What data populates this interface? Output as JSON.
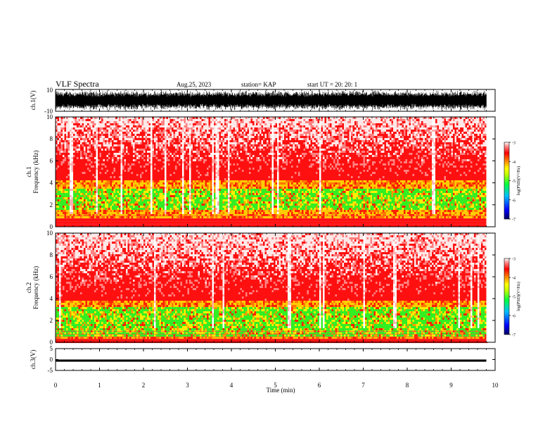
{
  "header": {
    "title": "VLF Spectra",
    "date": "Aug.25, 2023",
    "station": "station= KAP",
    "start": "start  UT =   20: 20: 1"
  },
  "chart_data": [
    {
      "type": "line",
      "panel": "ch1-waveform",
      "ylabel": "ch.1(V)",
      "ylim": [
        -10,
        10
      ],
      "yticks": [
        "10",
        "-10"
      ],
      "xlim": [
        0,
        10
      ],
      "series": [
        {
          "values_range": [
            -10,
            10
          ],
          "coverage_end_min": 9.8
        }
      ]
    },
    {
      "type": "heatmap",
      "panel": "ch1-spectrogram",
      "ylabel": "ch.1\nFrequency (kHz)",
      "ylabel_lines": [
        "ch.1",
        "Frequency  (kHz)"
      ],
      "ylim": [
        0,
        10
      ],
      "yticks": [
        "0",
        "2",
        "4",
        "6",
        "8",
        "10"
      ],
      "xlim": [
        0,
        10
      ],
      "coverage_end_min": 9.8,
      "green_band_khz": [
        1.5,
        3.5
      ],
      "yellow_band_khz": [
        0.8,
        4.2
      ],
      "red_band_khz": [
        0,
        10
      ],
      "colorbar": {
        "label": "log(PSD)(V²/Hz)",
        "ticks": [
          "-3",
          "-4",
          "-5",
          "-6",
          "-7"
        ],
        "range": [
          -7,
          -3
        ]
      }
    },
    {
      "type": "heatmap",
      "panel": "ch2-spectrogram",
      "ylabel_lines": [
        "ch.2",
        "Frequency  (kHz)"
      ],
      "ylim": [
        0,
        10
      ],
      "yticks": [
        "0",
        "2",
        "4",
        "6",
        "8",
        "10"
      ],
      "xlim": [
        0,
        10
      ],
      "coverage_end_min": 9.8,
      "green_band_khz": [
        0.5,
        3.2
      ],
      "yellow_band_khz": [
        0.3,
        3.8
      ],
      "red_band_khz": [
        0,
        10
      ],
      "colorbar": {
        "label": "log(PSD)(V²/Hz)",
        "ticks": [
          "-3",
          "-4",
          "-5",
          "-6",
          "-7"
        ],
        "range": [
          -7,
          -3
        ]
      }
    },
    {
      "type": "line",
      "panel": "ch3-waveform",
      "ylabel": "ch.3(V)",
      "ylim": [
        -5,
        5
      ],
      "yticks": [
        "5",
        "0",
        "-5"
      ],
      "xlim": [
        0,
        10
      ],
      "xticks": [
        "0",
        "1",
        "2",
        "3",
        "4",
        "5",
        "6",
        "7",
        "8",
        "9",
        "10"
      ],
      "xlabel": "Time  (min)",
      "series": [
        {
          "values_range": [
            -1,
            0
          ],
          "coverage_end_min": 9.8
        }
      ]
    }
  ],
  "colors": {
    "frame": "#000000",
    "colorscale": [
      "#000080",
      "#0000ff",
      "#00a0ff",
      "#00ffff",
      "#00ff00",
      "#ffff00",
      "#ff8000",
      "#ff0000",
      "#ff8080",
      "#ffffff"
    ]
  }
}
